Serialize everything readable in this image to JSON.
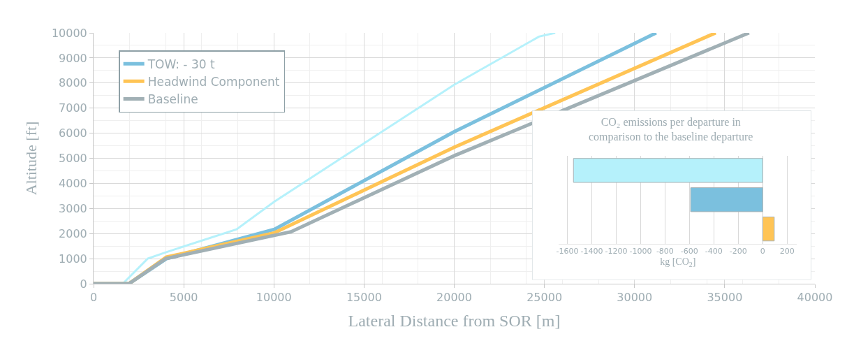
{
  "chart_data": [
    {
      "type": "line",
      "xlabel": "Lateral Distance from SOR [m]",
      "ylabel": "Altitude [ft]",
      "xlim": [
        0,
        40000
      ],
      "xticks": [
        0,
        5000,
        10000,
        15000,
        20000,
        25000,
        30000,
        35000,
        40000
      ],
      "ylim": [
        0,
        10000
      ],
      "yticks": [
        0,
        1000,
        2000,
        3000,
        4000,
        5000,
        6000,
        7000,
        8000,
        9000,
        10000
      ],
      "grid": true,
      "legend": "top left",
      "marker": "none",
      "line_style": "solid",
      "series": [
        {
          "color": "#b5f1fb",
          "x": [
            0,
            1620,
            3000,
            4000,
            7930,
            10000,
            20000,
            24700,
            25600
          ],
          "values": [
            0,
            0,
            1000,
            1250,
            2170,
            3260,
            7930,
            9850,
            10000
          ]
        },
        {
          "name": "TOW: - 30 t",
          "color": "#7bc0de",
          "x": [
            0,
            1960,
            4040,
            10030,
            20000,
            31200
          ],
          "values": [
            0,
            0,
            1000,
            2170,
            6060,
            10000
          ]
        },
        {
          "name": "Headwind Component",
          "color": "#ffc455",
          "x": [
            0,
            1960,
            4040,
            10000,
            20000,
            34500
          ],
          "values": [
            0,
            0,
            1060,
            2020,
            5440,
            10000
          ]
        },
        {
          "name": "Baseline",
          "color": "#a1b0b5",
          "x": [
            0,
            1960,
            4000,
            10950,
            20000,
            36350
          ],
          "values": [
            0,
            0,
            1000,
            2070,
            5100,
            10000
          ]
        }
      ]
    },
    {
      "type": "bar",
      "orientation": "horizontal",
      "title": "CO₂ emissions per departure in comparison to the baseline departure",
      "xlabel": "kg [CO$_{2}$]",
      "categories": [
        null,
        null,
        null
      ],
      "values": [
        -1550,
        -590,
        95
      ],
      "colors": [
        "#b5f1fb",
        "#7bc0de",
        "#ffc455"
      ],
      "xlim": [
        -1670,
        280
      ],
      "xticks": [
        -1600,
        -1400,
        -1200,
        -1000,
        -800,
        -600,
        -400,
        -200,
        0,
        200
      ],
      "grid": "x"
    }
  ]
}
